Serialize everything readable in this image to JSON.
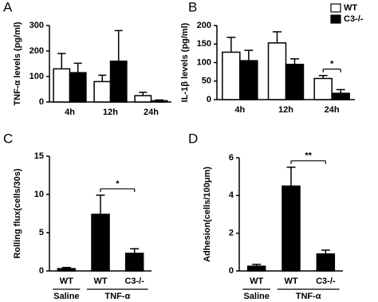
{
  "chart_data": [
    {
      "type": "bar",
      "panel_label": "A",
      "ylabel": "TNF-α levels (pg/ml)",
      "ylim": [
        0,
        300
      ],
      "yticks": [
        0,
        100,
        200,
        300
      ],
      "categories": [
        "4h",
        "12h",
        "24h"
      ],
      "series": [
        {
          "color": "#ffffff",
          "values": [
            130,
            80,
            25
          ],
          "errors": [
            60,
            25,
            13
          ]
        },
        {
          "color": "#000000",
          "values": [
            115,
            160,
            5
          ],
          "errors": [
            37,
            120,
            3
          ]
        }
      ]
    },
    {
      "type": "bar",
      "panel_label": "B",
      "ylabel": "IL-1β levels (pg/ml)",
      "ylim": [
        0,
        200
      ],
      "yticks": [
        0,
        50,
        100,
        150,
        200
      ],
      "categories": [
        "4h",
        "12h",
        "24h"
      ],
      "legend": "upper right",
      "series": [
        {
          "name": "WT",
          "color": "#ffffff",
          "values": [
            128,
            153,
            57
          ],
          "errors": [
            40,
            30,
            8
          ]
        },
        {
          "name": "C3-/-",
          "color": "#000000",
          "values": [
            105,
            95,
            17
          ],
          "errors": [
            28,
            15,
            10
          ]
        }
      ],
      "annotations": [
        {
          "text": "*"
        }
      ]
    },
    {
      "type": "bar",
      "panel_label": "C",
      "ylabel": "Rolling flux(cells/30s)",
      "ylim": [
        0,
        15
      ],
      "yticks": [
        0,
        5,
        10,
        15
      ],
      "groups": [
        {
          "name": "Saline",
          "categories": [
            "WT"
          ]
        },
        {
          "name": "TNF-α",
          "categories": [
            "WT",
            "C3-/-"
          ]
        }
      ],
      "series": [
        {
          "color": "#000000",
          "values": [
            0.3,
            7.4,
            2.3
          ],
          "errors": [
            0.15,
            2.5,
            0.6
          ]
        }
      ],
      "annotations": [
        {
          "text": "*"
        }
      ]
    },
    {
      "type": "bar",
      "panel_label": "D",
      "ylabel": "Adhesion(cells/100μm)",
      "ylim": [
        0,
        6
      ],
      "yticks": [
        0,
        2,
        4,
        6
      ],
      "groups": [
        {
          "name": "Saline",
          "categories": [
            "WT"
          ]
        },
        {
          "name": "TNF-α",
          "categories": [
            "WT",
            "C3-/-"
          ]
        }
      ],
      "series": [
        {
          "color": "#000000",
          "values": [
            0.25,
            4.5,
            0.9
          ],
          "errors": [
            0.1,
            1.0,
            0.2
          ]
        }
      ],
      "annotations": [
        {
          "text": "**"
        }
      ]
    }
  ]
}
